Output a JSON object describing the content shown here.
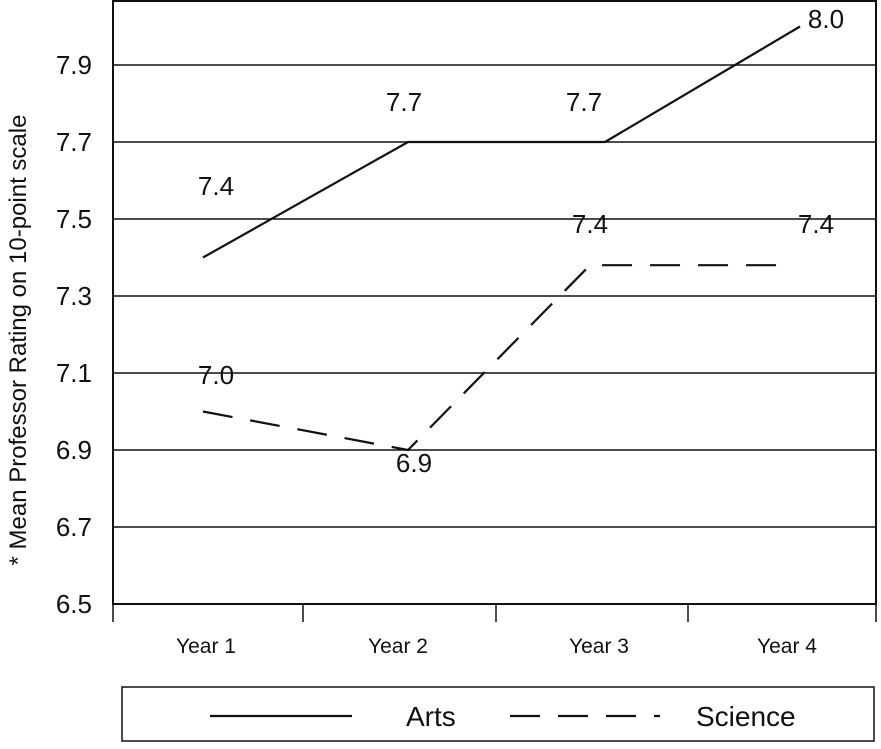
{
  "chart_data": {
    "type": "line",
    "title": "",
    "xlabel": "",
    "ylabel": "* Mean Professor Rating on 10-point scale",
    "categories": [
      "Year 1",
      "Year 2",
      "Year 3",
      "Year 4"
    ],
    "ylim": [
      6.5,
      8.0
    ],
    "yticks": [
      "6.5",
      "6.7",
      "6.9",
      "7.1",
      "7.3",
      "7.5",
      "7.7",
      "7.9"
    ],
    "grid": true,
    "legend_position": "bottom",
    "series": [
      {
        "name": "Arts",
        "style": "solid",
        "values": [
          7.4,
          7.7,
          7.7,
          8.0
        ],
        "labels": [
          "7.4",
          "7.7",
          "7.7",
          "8.0"
        ]
      },
      {
        "name": "Science",
        "style": "dashed",
        "values": [
          7.0,
          6.9,
          7.38,
          7.38
        ],
        "labels": [
          "7.0",
          "6.9",
          "7.4",
          "7.4"
        ]
      }
    ],
    "colors": {
      "line": "#111111",
      "grid": "#111111",
      "background": "#ffffff"
    }
  }
}
